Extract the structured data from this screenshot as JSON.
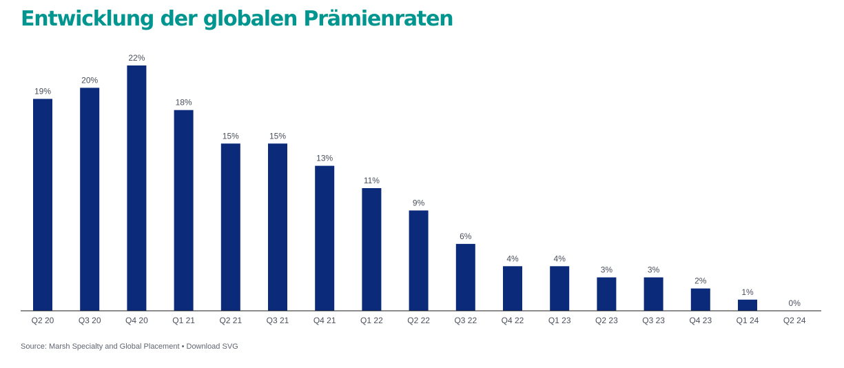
{
  "chart_data": {
    "type": "bar",
    "title": "Entwicklung der globalen Prämienraten",
    "categories": [
      "Q2 20",
      "Q3 20",
      "Q4 20",
      "Q1 21",
      "Q2 21",
      "Q3 21",
      "Q4 21",
      "Q1 22",
      "Q2 22",
      "Q3 22",
      "Q4 22",
      "Q1 23",
      "Q2 23",
      "Q3 23",
      "Q4 23",
      "Q1 24",
      "Q2 24"
    ],
    "values": [
      19,
      20,
      22,
      18,
      15,
      15,
      13,
      11,
      9,
      6,
      4,
      4,
      3,
      3,
      2,
      1,
      0
    ],
    "data_labels": [
      "19%",
      "20%",
      "22%",
      "18%",
      "15%",
      "15%",
      "13%",
      "11%",
      "9%",
      "6%",
      "4%",
      "4%",
      "3%",
      "3%",
      "2%",
      "1%",
      "0%"
    ],
    "xlabel": "",
    "ylabel": "",
    "ylim": [
      0,
      22
    ],
    "grid": false,
    "legend": "none",
    "bar_color": "#0b2a7a"
  },
  "footer": {
    "source_text": "Source: Marsh Specialty and Global Placement",
    "separator": "•",
    "download_label": "Download SVG"
  },
  "colors": {
    "title": "#00968f",
    "bar": "#0b2a7a",
    "axis": "#1a1a1a",
    "label": "#4a4f5c"
  }
}
